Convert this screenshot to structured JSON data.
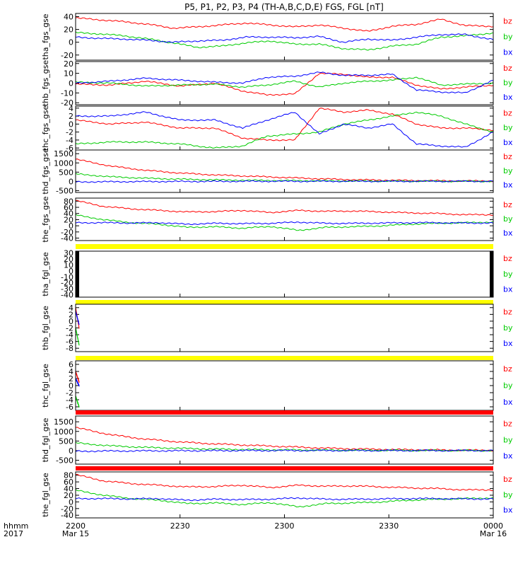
{
  "title": "P5, P1, P2, P3, P4 (TH-A,B,C,D,E) FGS, FGL [nT]",
  "colors": {
    "bz": "#ff0000",
    "by": "#00cc00",
    "bx": "#0000ff",
    "status_yellow": "#ffff00",
    "status_red": "#ff0000",
    "fill_black": "#000000"
  },
  "time_axis": {
    "label_line1": "hhmm",
    "label_line2": "2017",
    "ticks": [
      {
        "hhmm": "2200",
        "date": "Mar 15"
      },
      {
        "hhmm": "2230",
        "date": ""
      },
      {
        "hhmm": "2300",
        "date": ""
      },
      {
        "hhmm": "2330",
        "date": ""
      },
      {
        "hhmm": "0000",
        "date": "Mar 16"
      }
    ]
  },
  "legend_labels": [
    "bz",
    "by",
    "bx"
  ],
  "chart_data": [
    {
      "type": "line",
      "ylabel": "tha_fgs_gse",
      "yticks": [
        "40",
        "20",
        "0",
        "-20"
      ],
      "ylim": [
        -28,
        45
      ],
      "x_minutes": [
        0,
        7,
        14,
        21,
        28,
        35,
        42,
        49,
        56,
        63,
        70,
        77,
        84,
        91,
        98,
        105,
        112,
        119,
        120
      ],
      "series": [
        {
          "name": "bz",
          "values": [
            38,
            35,
            32,
            28,
            22,
            24,
            27,
            30,
            27,
            24,
            27,
            22,
            17,
            25,
            28,
            36,
            26,
            25,
            25
          ]
        },
        {
          "name": "by",
          "values": [
            15,
            13,
            10,
            5,
            -1,
            -8,
            -6,
            -1,
            2,
            -3,
            -3,
            -10,
            -12,
            -6,
            -3,
            8,
            10,
            14,
            14
          ]
        },
        {
          "name": "bx",
          "values": [
            8,
            6,
            5,
            3,
            0,
            2,
            3,
            8,
            8,
            7,
            9,
            0,
            5,
            3,
            8,
            12,
            12,
            5,
            4
          ]
        }
      ]
    },
    {
      "type": "line",
      "ylabel": "thb_fgs_gse",
      "yticks": [
        "20",
        "10",
        "0",
        "-10",
        "-20"
      ],
      "ylim": [
        -22,
        22
      ],
      "x_minutes": [
        0,
        10,
        20,
        30,
        40,
        48,
        55,
        63,
        70,
        77,
        84,
        91,
        98,
        105,
        112,
        120
      ],
      "series": [
        {
          "name": "bz",
          "values": [
            -1,
            -2,
            2,
            -3,
            0,
            -8,
            -12,
            -11,
            10,
            9,
            6,
            6,
            -2,
            -6,
            -4,
            -2
          ]
        },
        {
          "name": "by",
          "values": [
            1,
            0,
            -3,
            -2,
            -1,
            -4,
            -2,
            2,
            -4,
            0,
            2,
            3,
            6,
            -2,
            -1,
            0
          ]
        },
        {
          "name": "bx",
          "values": [
            0,
            2,
            5,
            3,
            1,
            0,
            6,
            7,
            11,
            8,
            8,
            9,
            -7,
            -9,
            -10,
            3
          ]
        }
      ]
    },
    {
      "type": "line",
      "ylabel": "thc_fgs_gse",
      "yticks": [
        "4",
        "2",
        "0",
        "-2",
        "-4",
        "-6"
      ],
      "ylim": [
        -6.5,
        4.5
      ],
      "x_minutes": [
        0,
        10,
        20,
        30,
        40,
        48,
        55,
        63,
        70,
        77,
        84,
        91,
        98,
        105,
        112,
        120
      ],
      "series": [
        {
          "name": "bz",
          "values": [
            1,
            0,
            0.5,
            -1,
            -1,
            -3.5,
            -4,
            -4,
            4,
            3,
            3.5,
            2.5,
            0,
            -1,
            -1,
            -1.5
          ]
        },
        {
          "name": "by",
          "values": [
            -5,
            -4.5,
            -4.5,
            -5,
            -6,
            -5.5,
            -3,
            -2.5,
            -2,
            0,
            1,
            2,
            3,
            2,
            0,
            -2
          ]
        },
        {
          "name": "bx",
          "values": [
            2,
            2,
            3,
            1,
            1,
            -1,
            1,
            3,
            -2.5,
            0,
            -1,
            0,
            -5,
            -5.5,
            -5.8,
            -2
          ]
        }
      ]
    },
    {
      "type": "line",
      "ylabel": "thd_fgs_gse",
      "yticks": [
        "1500",
        "1000",
        "500",
        "0",
        "-500"
      ],
      "ylim": [
        -600,
        1700
      ],
      "x_minutes": [
        0,
        10,
        20,
        30,
        40,
        50,
        60,
        70,
        80,
        90,
        100,
        110,
        120
      ],
      "series": [
        {
          "name": "bz",
          "values": [
            1200,
            830,
            600,
            450,
            350,
            280,
            210,
            140,
            90,
            60,
            40,
            25,
            20
          ]
        },
        {
          "name": "by",
          "values": [
            400,
            250,
            170,
            120,
            80,
            55,
            40,
            30,
            20,
            15,
            10,
            5,
            5
          ]
        },
        {
          "name": "bx",
          "values": [
            -30,
            -20,
            -10,
            -5,
            0,
            5,
            5,
            5,
            5,
            5,
            5,
            5,
            5
          ]
        }
      ]
    },
    {
      "type": "line",
      "ylabel": "the_fgs_gse",
      "yticks": [
        "80",
        "60",
        "40",
        "20",
        "0",
        "-20",
        "-40"
      ],
      "ylim": [
        -48,
        90
      ],
      "x_minutes": [
        0,
        8,
        16,
        24,
        32,
        40,
        48,
        56,
        64,
        72,
        80,
        88,
        96,
        104,
        112,
        120
      ],
      "series": [
        {
          "name": "bz",
          "values": [
            82,
            63,
            55,
            50,
            45,
            46,
            50,
            43,
            50,
            47,
            48,
            45,
            42,
            40,
            36,
            36
          ]
        },
        {
          "name": "by",
          "values": [
            35,
            20,
            10,
            5,
            -5,
            -3,
            -8,
            -2,
            -15,
            -5,
            -3,
            0,
            5,
            8,
            10,
            12
          ]
        },
        {
          "name": "bx",
          "values": [
            10,
            10,
            9,
            10,
            5,
            8,
            7,
            8,
            12,
            8,
            8,
            9,
            10,
            10,
            9,
            9
          ]
        }
      ]
    },
    {
      "type": "line",
      "ylabel": "tha_fgl_gse",
      "yticks": [
        "30",
        "20",
        "10",
        "0",
        "-10",
        "-20",
        "-30",
        "-40"
      ],
      "ylim": [
        -44,
        33
      ],
      "x_minutes": [],
      "series": []
    },
    {
      "type": "line",
      "ylabel": "thb_fgl_gse",
      "yticks": [
        "4",
        "2",
        "0",
        "-2",
        "-4",
        "-6",
        "-8"
      ],
      "ylim": [
        -9,
        5
      ],
      "x_minutes": [
        0,
        1
      ],
      "series": [
        {
          "name": "bz",
          "values": [
            4,
            -2
          ]
        },
        {
          "name": "by",
          "values": [
            -2,
            -7
          ]
        },
        {
          "name": "bx",
          "values": [
            3,
            -1
          ]
        }
      ]
    },
    {
      "type": "line",
      "ylabel": "thc_fgl_gse",
      "yticks": [
        "6",
        "4",
        "2",
        "0",
        "-2",
        "-4",
        "-6"
      ],
      "ylim": [
        -7,
        7
      ],
      "x_minutes": [
        0,
        1
      ],
      "series": [
        {
          "name": "bz",
          "values": [
            4,
            1
          ]
        },
        {
          "name": "by",
          "values": [
            -3,
            -6
          ]
        },
        {
          "name": "bx",
          "values": [
            2,
            0
          ]
        }
      ]
    },
    {
      "type": "line",
      "ylabel": "thd_fgl_gse",
      "yticks": [
        "1500",
        "1000",
        "500",
        "0",
        "-500"
      ],
      "ylim": [
        -700,
        1800
      ],
      "x_minutes": [
        0,
        10,
        20,
        30,
        40,
        50,
        60,
        70,
        80,
        90,
        100,
        110,
        120
      ],
      "series": [
        {
          "name": "bz",
          "values": [
            1200,
            830,
            600,
            450,
            350,
            280,
            210,
            140,
            90,
            60,
            40,
            25,
            20
          ]
        },
        {
          "name": "by",
          "values": [
            400,
            250,
            170,
            120,
            80,
            55,
            40,
            30,
            20,
            15,
            10,
            5,
            5
          ]
        },
        {
          "name": "bx",
          "values": [
            -30,
            -20,
            -10,
            -5,
            0,
            5,
            5,
            5,
            5,
            5,
            5,
            5,
            5
          ]
        }
      ]
    },
    {
      "type": "line",
      "ylabel": "the_fgl_gse",
      "yticks": [
        "80",
        "60",
        "40",
        "20",
        "0",
        "-20",
        "-40"
      ],
      "ylim": [
        -48,
        90
      ],
      "x_minutes": [
        0,
        8,
        16,
        24,
        32,
        40,
        48,
        56,
        64,
        72,
        80,
        88,
        96,
        104,
        112,
        120
      ],
      "series": [
        {
          "name": "bz",
          "values": [
            82,
            63,
            55,
            50,
            45,
            46,
            50,
            43,
            50,
            47,
            48,
            45,
            42,
            40,
            36,
            36
          ]
        },
        {
          "name": "by",
          "values": [
            35,
            20,
            10,
            5,
            -5,
            -3,
            -8,
            -2,
            -15,
            -5,
            -3,
            0,
            5,
            8,
            10,
            12
          ]
        },
        {
          "name": "bx",
          "values": [
            10,
            10,
            9,
            10,
            5,
            8,
            7,
            8,
            12,
            8,
            8,
            9,
            10,
            10,
            9,
            9
          ]
        }
      ]
    }
  ]
}
